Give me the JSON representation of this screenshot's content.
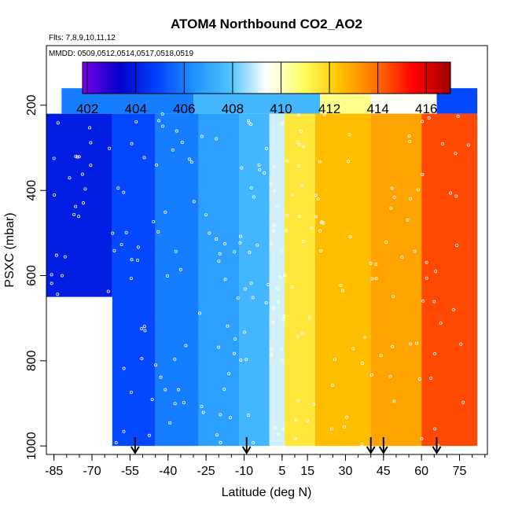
{
  "chart_data": {
    "type": "heatmap",
    "title": "ATOM4 Northbound CO2_AO2",
    "flights_note": "Flts: 7,8,9,10,11,12",
    "dates_note": "MMDD: 0509,0512,0514,0517,0518,0519",
    "xlabel": "Latitude (deg N)",
    "ylabel": "PSXC (mbar)",
    "xlim": [
      -88,
      86
    ],
    "ylim": [
      1020,
      60
    ],
    "x_ticks": [
      -85,
      -70,
      -55,
      -40,
      -25,
      -10,
      5,
      15,
      30,
      45,
      60,
      75
    ],
    "x_tick_labels": [
      "-85",
      "-70",
      "-55",
      "-40",
      "-25",
      "-10",
      "5",
      "15",
      "30",
      "45",
      "60",
      "75"
    ],
    "y_ticks": [
      200,
      400,
      600,
      800,
      1000
    ],
    "y_tick_labels": [
      "200",
      "400",
      "600",
      "800",
      "1000"
    ],
    "colorbar": {
      "range": [
        401.8,
        417
      ],
      "ticks": [
        402,
        404,
        406,
        408,
        410,
        412,
        414,
        416
      ],
      "tick_labels": [
        "402",
        "404",
        "406",
        "408",
        "410",
        "412",
        "414",
        "416"
      ],
      "colors": [
        "#7a00e6",
        "#0000c8",
        "#0040ff",
        "#1e90ff",
        "#4fc3ff",
        "#ffffff",
        "#ffff60",
        "#ffc000",
        "#ff7000",
        "#ff0000",
        "#a00000"
      ]
    },
    "arrow_latitudes": [
      -53,
      -9,
      40,
      45,
      66
    ],
    "grid": false,
    "profiles": [
      {
        "lat": [
          -88,
          -62
        ],
        "top": 220,
        "bottom": 650,
        "co2": 404.0
      },
      {
        "lat": [
          -62,
          -45
        ],
        "top": 220,
        "bottom": 1000,
        "co2": 405.0
      },
      {
        "lat": [
          -45,
          -28
        ],
        "top": 220,
        "bottom": 1000,
        "co2": 406.0
      },
      {
        "lat": [
          -28,
          -12
        ],
        "top": 220,
        "bottom": 1000,
        "co2": 406.8
      },
      {
        "lat": [
          -12,
          0
        ],
        "top": 220,
        "bottom": 1000,
        "co2": 407.5
      },
      {
        "lat": [
          0,
          6
        ],
        "top": 220,
        "bottom": 1000,
        "co2": 409.0
      },
      {
        "lat": [
          6,
          18
        ],
        "top": 220,
        "bottom": 1000,
        "co2": 411.5
      },
      {
        "lat": [
          18,
          40
        ],
        "top": 220,
        "bottom": 1000,
        "co2": 412.5
      },
      {
        "lat": [
          40,
          60
        ],
        "top": 220,
        "bottom": 1000,
        "co2": 413.0
      },
      {
        "lat": [
          60,
          82
        ],
        "top": 220,
        "bottom": 1000,
        "co2": 414.5
      }
    ],
    "upper_layer": [
      {
        "lat": [
          -82,
          -30
        ],
        "top": 160,
        "bottom": 220,
        "co2": 406.0
      },
      {
        "lat": [
          -30,
          20
        ],
        "top": 160,
        "bottom": 220,
        "co2": 407.5
      },
      {
        "lat": [
          20,
          40
        ],
        "top": 160,
        "bottom": 220,
        "co2": 410.5
      },
      {
        "lat": [
          40,
          66
        ],
        "top": 160,
        "bottom": 220,
        "co2": 409.5
      },
      {
        "lat": [
          66,
          82
        ],
        "top": 160,
        "bottom": 220,
        "co2": 405.0
      }
    ]
  }
}
